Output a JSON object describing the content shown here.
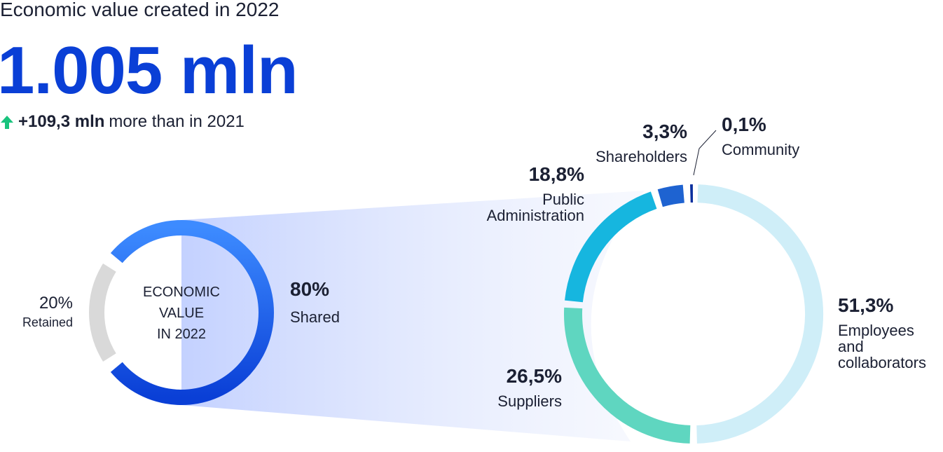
{
  "header": {
    "title": "Economic value created in 2022",
    "total": "1.005 mln",
    "delta_amount": "+109,3 mln",
    "delta_text": "more than in 2021"
  },
  "colors": {
    "accent": "#0a3fd6",
    "up_arrow": "#19c37d",
    "retained": "#d9d9d9",
    "shared_light": "#3d8bff",
    "shared_dark": "#0a3fd6"
  },
  "chart_data": [
    {
      "type": "pie",
      "center_label": [
        "ECONOMIC",
        "VALUE",
        "IN 2022"
      ],
      "slices": [
        {
          "label": "Shared",
          "pct_label": "80%",
          "value": 80
        },
        {
          "label": "Retained",
          "pct_label": "20%",
          "value": 20
        }
      ]
    },
    {
      "type": "pie",
      "slices": [
        {
          "label_lines": [
            "Employees",
            "and",
            "collaborators"
          ],
          "pct_label": "51,3%",
          "value": 51.3,
          "color": "#cfeef8"
        },
        {
          "label_lines": [
            "Suppliers"
          ],
          "pct_label": "26,5%",
          "value": 26.5,
          "color": "#5fd6c0"
        },
        {
          "label_lines": [
            "Public",
            "Administration"
          ],
          "pct_label": "18,8%",
          "value": 18.8,
          "color": "#16b6df"
        },
        {
          "label_lines": [
            "Shareholders"
          ],
          "pct_label": "3,3%",
          "value": 3.3,
          "color": "#1e63d1"
        },
        {
          "label_lines": [
            "Community"
          ],
          "pct_label": "0,1%",
          "value": 0.1,
          "color": "#0a2f9e"
        }
      ]
    }
  ]
}
